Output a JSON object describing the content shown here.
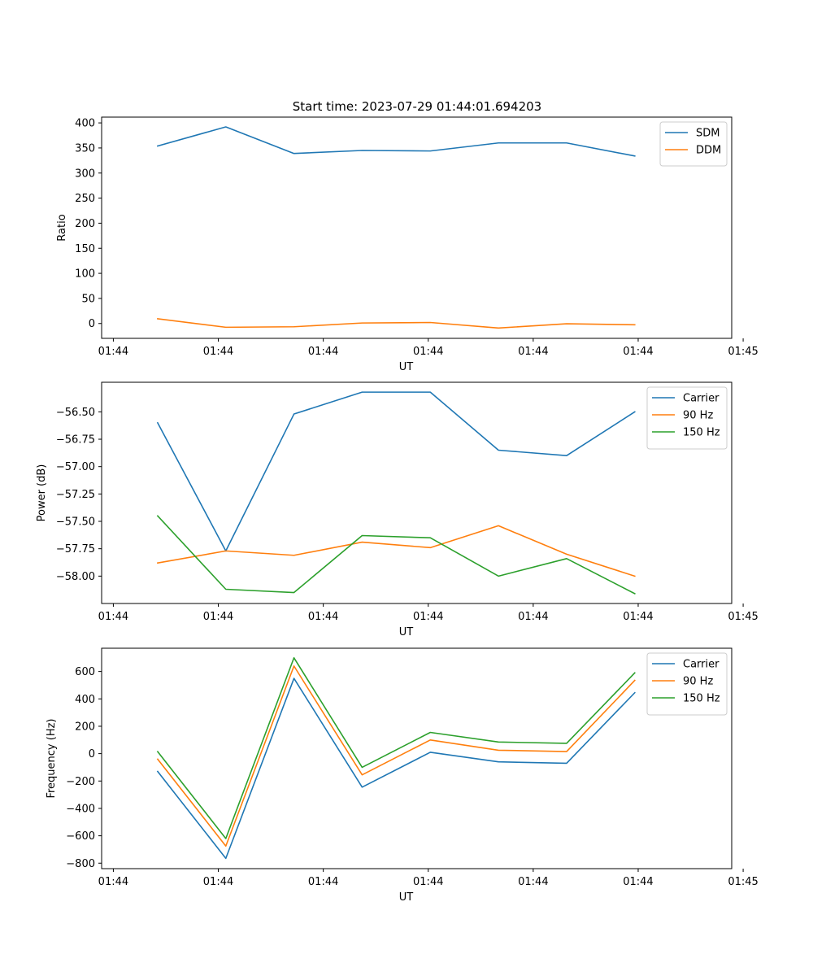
{
  "figure": {
    "title": "Start time: 2023-07-29 01:44:01.694203"
  },
  "colors": {
    "blue": "#1f77b4",
    "orange": "#ff7f0e",
    "green": "#2ca02c"
  },
  "chart_data": [
    {
      "type": "line",
      "title": "Start time: 2023-07-29 01:44:01.694203",
      "xlabel": "UT",
      "ylabel": "Ratio",
      "x": [
        1,
        2,
        3,
        4,
        5,
        6,
        7,
        8
      ],
      "xlim": [
        0.178,
        9.422
      ],
      "xticks": [
        0.35,
        1.89,
        3.43,
        4.97,
        6.51,
        8.05,
        9.59
      ],
      "xticklabels": [
        "01:44",
        "01:44",
        "01:44",
        "01:44",
        "01:44",
        "01:44",
        "01:45"
      ],
      "ylim": [
        -29.6,
        411.5
      ],
      "yticks": [
        0,
        50,
        100,
        150,
        200,
        250,
        300,
        350,
        400
      ],
      "yticklabels": [
        "0",
        "50",
        "100",
        "150",
        "200",
        "250",
        "300",
        "350",
        "400"
      ],
      "legend": "top-right",
      "series": [
        {
          "name": "SDM",
          "color": "#1f77b4",
          "values": [
            354,
            392,
            339,
            345,
            344,
            360,
            360,
            334
          ]
        },
        {
          "name": "DDM",
          "color": "#ff7f0e",
          "values": [
            9.5,
            -7.5,
            -6.5,
            1,
            2,
            -9,
            -0.5,
            -2.5
          ]
        }
      ]
    },
    {
      "type": "line",
      "title": "",
      "xlabel": "UT",
      "ylabel": "Power (dB)",
      "x": [
        1,
        2,
        3,
        4,
        5,
        6,
        7,
        8
      ],
      "xlim": [
        0.178,
        9.422
      ],
      "xticks": [
        0.35,
        1.89,
        3.43,
        4.97,
        6.51,
        8.05,
        9.59
      ],
      "xticklabels": [
        "01:44",
        "01:44",
        "01:44",
        "01:44",
        "01:44",
        "01:44",
        "01:45"
      ],
      "ylim": [
        -58.25,
        -56.23
      ],
      "yticks": [
        -58.0,
        -57.75,
        -57.5,
        -57.25,
        -57.0,
        -56.75,
        -56.5
      ],
      "yticklabels": [
        "−58.00",
        "−57.75",
        "−57.50",
        "−57.25",
        "−57.00",
        "−56.75",
        "−56.50"
      ],
      "legend": "top-right",
      "series": [
        {
          "name": "Carrier",
          "color": "#1f77b4",
          "values": [
            -56.6,
            -57.77,
            -56.52,
            -56.32,
            -56.32,
            -56.85,
            -56.9,
            -56.5
          ]
        },
        {
          "name": "90 Hz",
          "color": "#ff7f0e",
          "values": [
            -57.88,
            -57.77,
            -57.81,
            -57.69,
            -57.74,
            -57.54,
            -57.8,
            -58.0
          ]
        },
        {
          "name": "150 Hz",
          "color": "#2ca02c",
          "values": [
            -57.45,
            -58.12,
            -58.15,
            -57.63,
            -57.65,
            -58.0,
            -57.84,
            -58.16
          ]
        }
      ]
    },
    {
      "type": "line",
      "title": "",
      "xlabel": "UT",
      "ylabel": "Frequency (Hz)",
      "x": [
        1,
        2,
        3,
        4,
        5,
        6,
        7,
        8
      ],
      "xlim": [
        0.178,
        9.422
      ],
      "xticks": [
        0.35,
        1.89,
        3.43,
        4.97,
        6.51,
        8.05,
        9.59
      ],
      "xticklabels": [
        "01:44",
        "01:44",
        "01:44",
        "01:44",
        "01:44",
        "01:44",
        "01:45"
      ],
      "ylim": [
        -840,
        770
      ],
      "yticks": [
        -800,
        -600,
        -400,
        -200,
        0,
        200,
        400,
        600
      ],
      "yticklabels": [
        "−800",
        "−600",
        "−400",
        "−200",
        "0",
        "200",
        "400",
        "600"
      ],
      "legend": "top-right",
      "series": [
        {
          "name": "Carrier",
          "color": "#1f77b4",
          "values": [
            -130,
            -765,
            550,
            -245,
            10,
            -60,
            -70,
            445
          ]
        },
        {
          "name": "90 Hz",
          "color": "#ff7f0e",
          "values": [
            -40,
            -675,
            640,
            -155,
            100,
            25,
            15,
            535
          ]
        },
        {
          "name": "150 Hz",
          "color": "#2ca02c",
          "values": [
            15,
            -620,
            700,
            -100,
            155,
            85,
            75,
            590
          ]
        }
      ]
    }
  ]
}
